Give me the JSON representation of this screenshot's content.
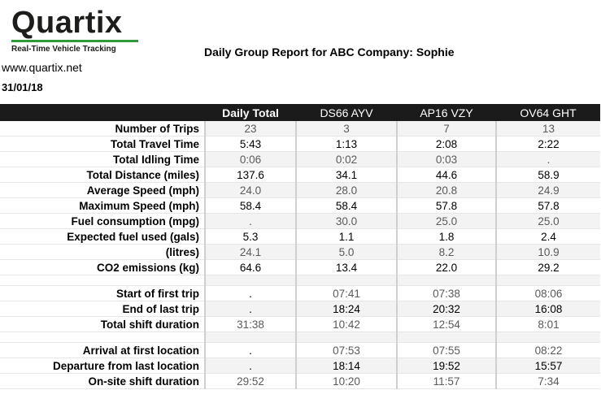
{
  "logo": {
    "wordmark": "Quartix",
    "tagline": "Real-Time Vehicle Tracking"
  },
  "site": "www.quartix.net",
  "date": "31/01/18",
  "report_title": "Daily Group Report for ABC Company: Sophie",
  "columns": [
    "Daily Total",
    "DS66 AYV",
    "AP16 VZY",
    "OV64 GHT"
  ],
  "rows": [
    {
      "label": "Number of Trips",
      "values": [
        "23",
        "3",
        "7",
        "13"
      ]
    },
    {
      "label": "Total Travel Time",
      "values": [
        "5:43",
        "1:13",
        "2:08",
        "2:22"
      ]
    },
    {
      "label": "Total Idling Time",
      "values": [
        "0:06",
        "0:02",
        "0:03",
        "."
      ]
    },
    {
      "label": "Total Distance (miles)",
      "values": [
        "137.6",
        "34.1",
        "44.6",
        "58.9"
      ]
    },
    {
      "label": "Average Speed (mph)",
      "values": [
        "24.0",
        "28.0",
        "20.8",
        "24.9"
      ]
    },
    {
      "label": "Maximum Speed (mph)",
      "values": [
        "58.4",
        "58.4",
        "57.8",
        "57.8"
      ]
    },
    {
      "label": "Fuel consumption (mpg)",
      "values": [
        ".",
        "30.0",
        "25.0",
        "25.0"
      ]
    },
    {
      "label": "Expected fuel used (gals)",
      "values": [
        "5.3",
        "1.1",
        "1.8",
        "2.4"
      ]
    },
    {
      "label": "(litres)",
      "values": [
        "24.1",
        "5.0",
        "8.2",
        "10.9"
      ]
    },
    {
      "label": "CO2 emissions (kg)",
      "values": [
        "64.6",
        "13.4",
        "22.0",
        "29.2"
      ]
    },
    {
      "label": "",
      "values": [
        "",
        "",
        "",
        ""
      ]
    },
    {
      "label": "Start of first trip",
      "values": [
        ".",
        "07:41",
        "07:38",
        "08:06"
      ]
    },
    {
      "label": "End of last trip",
      "values": [
        ".",
        "18:24",
        "20:32",
        "16:08"
      ]
    },
    {
      "label": "Total shift duration",
      "values": [
        "31:38",
        "10:42",
        "12:54",
        "8:01"
      ]
    },
    {
      "label": "",
      "values": [
        "",
        "",
        "",
        ""
      ]
    },
    {
      "label": "Arrival at first location",
      "values": [
        ".",
        "07:53",
        "07:55",
        "08:22"
      ]
    },
    {
      "label": "Departure from last location",
      "values": [
        ".",
        "18:14",
        "19:52",
        "15:57"
      ]
    },
    {
      "label": "On-site shift duration",
      "values": [
        "29:52",
        "10:20",
        "11:57",
        "7:34"
      ]
    }
  ]
}
